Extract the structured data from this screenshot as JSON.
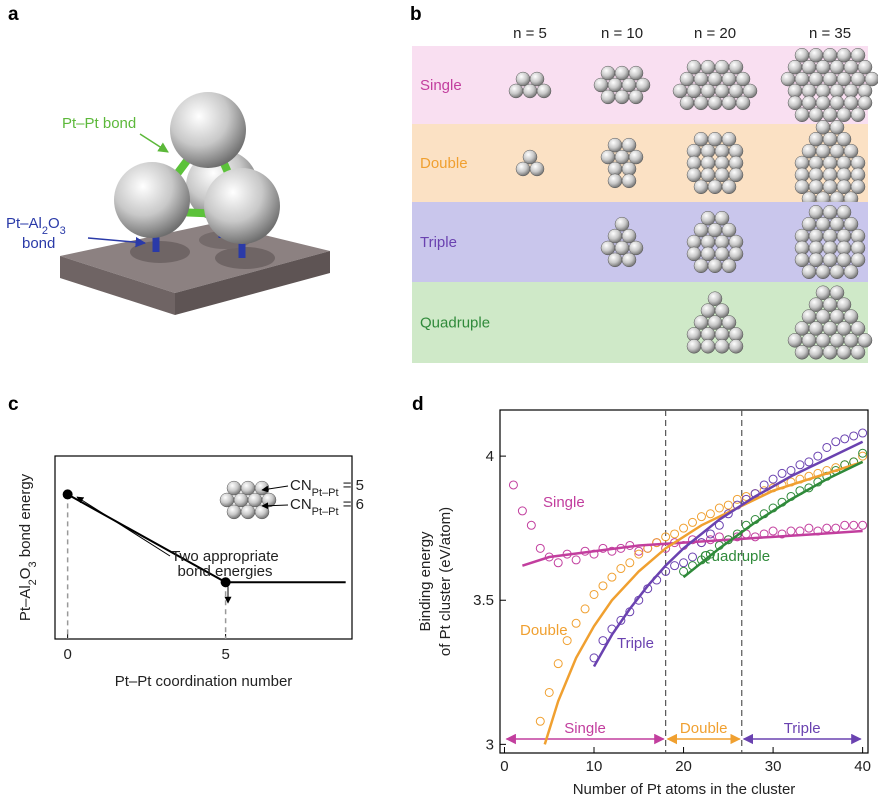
{
  "panel_a": {
    "label": "a",
    "pt_pt": "Pt–Pt bond",
    "pt_al": [
      "Pt–Al",
      "2",
      "O",
      "3"
    ],
    "pt_al_bond": "bond"
  },
  "panel_b": {
    "label": "b",
    "columns": [
      "n = 5",
      "n = 10",
      "n = 20",
      "n = 35"
    ],
    "rows": [
      {
        "name": "Single",
        "color": "#c23e9e",
        "background": "#f9dff1"
      },
      {
        "name": "Double",
        "color": "#f0a030",
        "background": "#fbe1c4"
      },
      {
        "name": "Triple",
        "color": "#6a42b0",
        "background": "#c9c6ec"
      },
      {
        "name": "Quadruple",
        "color": "#2f8a3a",
        "background": "#cfe9c8"
      }
    ]
  },
  "chart_data": [
    {
      "type": "line",
      "panel_label": "c",
      "xlabel": "Pt–Pt coordination number",
      "ylabel_parts": [
        "Pt–Al",
        "2",
        "O",
        "3",
        " bond energy"
      ],
      "xlim": [
        -0.4,
        9
      ],
      "xticks": [
        0,
        5
      ],
      "ylim": [
        0,
        1
      ],
      "x": [
        0,
        5,
        8.8
      ],
      "values": [
        0.79,
        0.31,
        0.31
      ],
      "color": "#000000",
      "annotations": {
        "cn5": [
          "CN",
          "Pt–Pt",
          " = 5"
        ],
        "cn6": [
          "CN",
          "Pt–Pt",
          " = 6"
        ],
        "note": [
          "Two appropriate",
          "bond energies"
        ]
      }
    },
    {
      "type": "scatter",
      "panel_label": "d",
      "xlabel": "Number of Pt atoms in the cluster",
      "ylabel": [
        "Binding energy",
        "of Pt cluster (eV/atom)"
      ],
      "xlim": [
        -0.5,
        40.6
      ],
      "xticks": [
        0,
        10,
        20,
        30,
        40
      ],
      "ylim": [
        2.97,
        4.16
      ],
      "yticks": [
        3,
        3.5,
        4
      ],
      "vlines": [
        18,
        26.5
      ],
      "regions": [
        {
          "label": "Single",
          "from": 0,
          "to": 18
        },
        {
          "label": "Double",
          "from": 18,
          "to": 26.5
        },
        {
          "label": "Triple",
          "from": 26.5,
          "to": 40
        }
      ],
      "region_colors": [
        "#c23e9e",
        "#f0a030",
        "#6a42b0"
      ],
      "series": [
        {
          "name": "Single",
          "color": "#c23e9e",
          "style": "markers",
          "x": [
            1,
            2,
            3,
            4,
            5,
            6,
            7,
            8,
            9,
            10,
            11,
            12,
            13,
            14,
            15,
            16,
            17,
            18,
            19,
            20,
            21,
            22,
            23,
            24,
            25,
            26,
            27,
            28,
            29,
            30,
            31,
            32,
            33,
            34,
            35,
            36,
            37,
            38,
            39,
            40
          ],
          "values": [
            3.9,
            3.81,
            3.76,
            3.68,
            3.65,
            3.63,
            3.66,
            3.64,
            3.67,
            3.66,
            3.68,
            3.67,
            3.68,
            3.69,
            3.67,
            3.68,
            3.7,
            3.68,
            3.7,
            3.69,
            3.71,
            3.7,
            3.71,
            3.72,
            3.71,
            3.72,
            3.73,
            3.72,
            3.73,
            3.74,
            3.73,
            3.74,
            3.74,
            3.75,
            3.74,
            3.75,
            3.75,
            3.76,
            3.76,
            3.76
          ]
        },
        {
          "name": "Double",
          "color": "#f0a030",
          "style": "markers",
          "x": [
            4,
            5,
            6,
            7,
            8,
            9,
            10,
            11,
            12,
            13,
            14,
            15,
            16,
            17,
            18,
            19,
            20,
            21,
            22,
            23,
            24,
            25,
            26,
            27,
            28,
            29,
            30,
            31,
            32,
            33,
            34,
            35,
            36,
            37,
            38,
            39,
            40
          ],
          "values": [
            3.08,
            3.18,
            3.28,
            3.36,
            3.42,
            3.47,
            3.52,
            3.55,
            3.58,
            3.61,
            3.63,
            3.66,
            3.68,
            3.7,
            3.72,
            3.73,
            3.75,
            3.77,
            3.79,
            3.8,
            3.82,
            3.83,
            3.85,
            3.86,
            3.87,
            3.88,
            3.89,
            3.9,
            3.91,
            3.92,
            3.93,
            3.94,
            3.95,
            3.96,
            3.97,
            3.98,
            4.0
          ]
        },
        {
          "name": "Triple",
          "color": "#6a42b0",
          "style": "markers",
          "x": [
            10,
            11,
            12,
            13,
            14,
            15,
            16,
            17,
            18,
            19,
            20,
            21,
            22,
            23,
            24,
            25,
            26,
            27,
            28,
            29,
            30,
            31,
            32,
            33,
            34,
            35,
            36,
            37,
            38,
            39,
            40
          ],
          "values": [
            3.3,
            3.36,
            3.4,
            3.43,
            3.46,
            3.5,
            3.54,
            3.57,
            3.6,
            3.62,
            3.63,
            3.65,
            3.7,
            3.73,
            3.76,
            3.8,
            3.83,
            3.85,
            3.87,
            3.9,
            3.92,
            3.94,
            3.95,
            3.97,
            3.98,
            4.0,
            4.03,
            4.05,
            4.06,
            4.07,
            4.08
          ]
        },
        {
          "name": "Quadruple",
          "color": "#2f8a3a",
          "style": "markers",
          "x": [
            20,
            21,
            22,
            23,
            24,
            25,
            26,
            27,
            28,
            29,
            30,
            31,
            32,
            33,
            34,
            35,
            36,
            37,
            38,
            39,
            40
          ],
          "values": [
            3.6,
            3.62,
            3.64,
            3.66,
            3.69,
            3.71,
            3.73,
            3.76,
            3.78,
            3.8,
            3.82,
            3.84,
            3.86,
            3.88,
            3.89,
            3.91,
            3.93,
            3.95,
            3.97,
            3.98,
            4.01
          ]
        },
        {
          "color": "#c23e9e",
          "style": "line",
          "x": [
            2,
            5,
            10,
            15,
            20,
            25,
            30,
            35,
            40
          ],
          "values": [
            3.62,
            3.65,
            3.67,
            3.69,
            3.7,
            3.71,
            3.72,
            3.73,
            3.74
          ]
        },
        {
          "color": "#f0a030",
          "style": "line",
          "x": [
            4.5,
            6,
            8,
            10,
            12,
            15,
            18,
            22,
            26,
            30,
            35,
            40
          ],
          "values": [
            3,
            3.15,
            3.3,
            3.41,
            3.5,
            3.6,
            3.68,
            3.76,
            3.82,
            3.88,
            3.93,
            3.98
          ]
        },
        {
          "color": "#6a42b0",
          "style": "line",
          "x": [
            10,
            12,
            14,
            16,
            18,
            20,
            24,
            28,
            32,
            36,
            40
          ],
          "values": [
            3.27,
            3.38,
            3.47,
            3.55,
            3.62,
            3.68,
            3.78,
            3.86,
            3.93,
            3.99,
            4.05
          ]
        },
        {
          "color": "#2f8a3a",
          "style": "line",
          "x": [
            20,
            24,
            28,
            32,
            36,
            40
          ],
          "values": [
            3.58,
            3.68,
            3.77,
            3.85,
            3.92,
            3.98
          ]
        }
      ]
    }
  ]
}
